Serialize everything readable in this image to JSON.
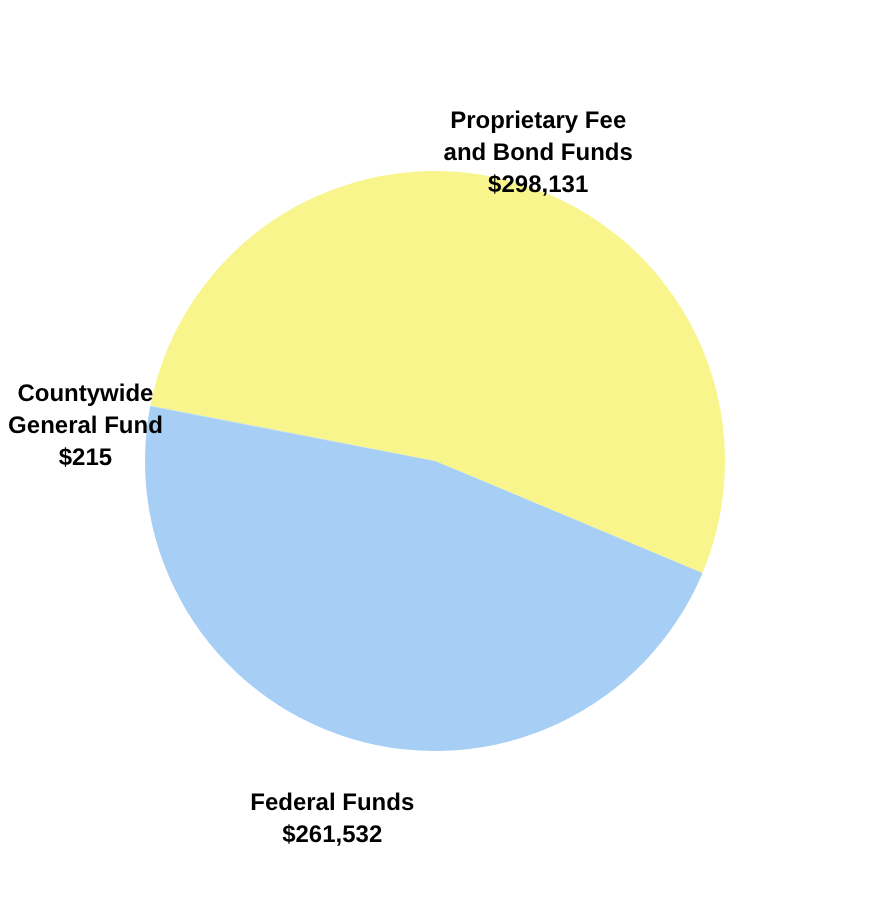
{
  "chart_data": {
    "type": "pie",
    "categories": [
      "Proprietary Fee and Bond Funds",
      "Federal Funds",
      "Countywide General Fund"
    ],
    "values": [
      298131,
      261532,
      215
    ],
    "value_labels": [
      "$298,131",
      "$261,532",
      "$215"
    ],
    "colors": [
      "#f7f58c",
      "#a7cff5",
      "#a7cff5"
    ],
    "legend": false
  }
}
